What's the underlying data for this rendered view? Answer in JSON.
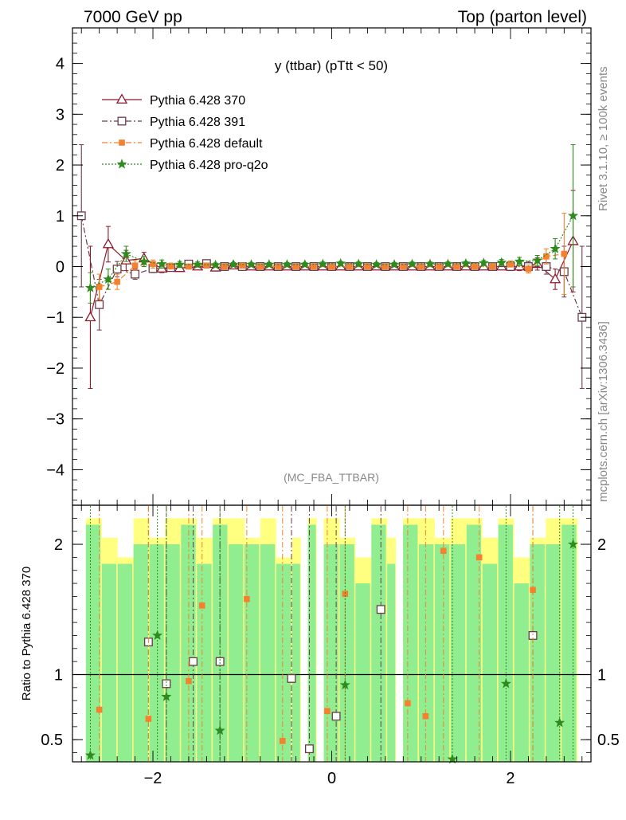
{
  "header": {
    "left": "7000 GeV pp",
    "right": "Top (parton level)"
  },
  "side": {
    "rivet": "Rivet 3.1.10, ≥ 100k events",
    "mcplots": "mcplots.cern.ch [arXiv:1306.3436]"
  },
  "chart_data": [
    {
      "type": "line",
      "title": "y (ttbar) (pTtt < 50)",
      "watermark": "(MC_FBA_TTBAR)",
      "xlim": [
        -2.9,
        2.9
      ],
      "ylim": [
        -4.7,
        4.7
      ],
      "yticks": [
        -4,
        -3,
        -2,
        -1,
        0,
        1,
        2,
        3,
        4
      ],
      "ytick_labels": [
        "−4",
        "−3",
        "−2",
        "−1",
        "0",
        "1",
        "2",
        "3",
        "4"
      ],
      "legend_position": "top-left",
      "series": [
        {
          "name": "Pythia 6.428 370",
          "color": "#8b1a2b",
          "marker": "triangle-open",
          "dash": "solid",
          "x": [
            -2.7,
            -2.5,
            -2.3,
            -2.1,
            -1.9,
            -1.7,
            -1.5,
            -1.3,
            -1.1,
            -0.9,
            -0.7,
            -0.5,
            -0.3,
            -0.1,
            0.1,
            0.3,
            0.5,
            0.7,
            0.9,
            1.1,
            1.3,
            1.5,
            1.7,
            1.9,
            2.1,
            2.3,
            2.5,
            2.7
          ],
          "y": [
            -1.0,
            0.44,
            0.12,
            0.16,
            -0.04,
            -0.03,
            0.0,
            -0.02,
            0.02,
            0.0,
            0.0,
            0.0,
            0.0,
            0.0,
            0.0,
            0.0,
            0.0,
            0.0,
            0.0,
            0.0,
            0.0,
            0.0,
            0.0,
            0.0,
            0.0,
            0.05,
            -0.25,
            0.5
          ],
          "err": [
            1.4,
            0.35,
            0.2,
            0.12,
            0.08,
            0.06,
            0.05,
            0.04,
            0.04,
            0.04,
            0.04,
            0.04,
            0.04,
            0.04,
            0.04,
            0.04,
            0.04,
            0.04,
            0.04,
            0.04,
            0.04,
            0.04,
            0.05,
            0.06,
            0.08,
            0.12,
            0.2,
            1.0
          ]
        },
        {
          "name": "Pythia 6.428 391",
          "color": "#6b3a4a",
          "marker": "square-open",
          "dash": "dashdot",
          "x": [
            -2.8,
            -2.6,
            -2.4,
            -2.2,
            -2.0,
            -1.8,
            -1.6,
            -1.4,
            -1.2,
            -1.0,
            -0.8,
            -0.6,
            -0.4,
            -0.2,
            0.0,
            0.2,
            0.4,
            0.6,
            0.8,
            1.0,
            1.2,
            1.4,
            1.6,
            1.8,
            2.0,
            2.2,
            2.4,
            2.6,
            2.8
          ],
          "y": [
            1.0,
            -0.75,
            -0.05,
            -0.15,
            -0.04,
            -0.02,
            0.05,
            0.06,
            0.0,
            0.0,
            0.0,
            0.0,
            0.0,
            0.0,
            0.0,
            0.0,
            0.0,
            0.0,
            0.0,
            0.0,
            0.0,
            0.0,
            0.0,
            0.0,
            0.0,
            0.0,
            0.0,
            -0.1,
            -1.0
          ],
          "err": [
            1.4,
            0.5,
            0.15,
            0.1,
            0.08,
            0.06,
            0.05,
            0.04,
            0.04,
            0.04,
            0.04,
            0.04,
            0.04,
            0.04,
            0.04,
            0.04,
            0.04,
            0.04,
            0.04,
            0.04,
            0.04,
            0.04,
            0.05,
            0.06,
            0.08,
            0.1,
            0.15,
            0.5,
            1.4
          ]
        },
        {
          "name": "Pythia 6.428 default",
          "color": "#f5812e",
          "marker": "square-filled",
          "dash": "dashdot",
          "x": [
            -2.6,
            -2.4,
            -2.2,
            -2.0,
            -1.8,
            -1.6,
            -1.4,
            -1.2,
            -1.0,
            -0.8,
            -0.6,
            -0.4,
            -0.2,
            0.0,
            0.2,
            0.4,
            0.6,
            0.8,
            1.0,
            1.2,
            1.4,
            1.6,
            1.8,
            2.0,
            2.2,
            2.4,
            2.6
          ],
          "y": [
            -0.4,
            -0.3,
            0.02,
            0.05,
            0.01,
            0.0,
            0.02,
            0.0,
            0.02,
            0.0,
            0.0,
            0.0,
            0.0,
            0.0,
            0.0,
            0.0,
            0.0,
            0.0,
            0.0,
            0.0,
            0.0,
            0.0,
            0.0,
            0.05,
            -0.05,
            0.2,
            0.25
          ],
          "err": [
            0.25,
            0.15,
            0.1,
            0.08,
            0.06,
            0.05,
            0.04,
            0.04,
            0.04,
            0.04,
            0.04,
            0.04,
            0.04,
            0.04,
            0.04,
            0.04,
            0.04,
            0.04,
            0.04,
            0.04,
            0.04,
            0.04,
            0.05,
            0.06,
            0.08,
            0.15,
            0.8
          ]
        },
        {
          "name": "Pythia 6.428 pro-q2o",
          "color": "#2e8b1e",
          "marker": "star",
          "dash": "dotted",
          "x": [
            -2.7,
            -2.5,
            -2.3,
            -2.1,
            -1.9,
            -1.7,
            -1.5,
            -1.3,
            -1.1,
            -0.9,
            -0.7,
            -0.5,
            -0.3,
            -0.1,
            0.1,
            0.3,
            0.5,
            0.7,
            0.9,
            1.1,
            1.3,
            1.5,
            1.7,
            1.9,
            2.1,
            2.3,
            2.5,
            2.7
          ],
          "y": [
            -0.42,
            -0.25,
            0.25,
            0.1,
            0.05,
            0.04,
            0.04,
            0.03,
            0.04,
            0.04,
            0.04,
            0.04,
            0.04,
            0.05,
            0.06,
            0.05,
            0.04,
            0.04,
            0.05,
            0.05,
            0.05,
            0.06,
            0.07,
            0.08,
            0.1,
            0.12,
            0.35,
            1.0
          ],
          "err": [
            0.3,
            0.2,
            0.15,
            0.1,
            0.08,
            0.06,
            0.05,
            0.04,
            0.04,
            0.04,
            0.04,
            0.04,
            0.04,
            0.04,
            0.04,
            0.04,
            0.04,
            0.04,
            0.04,
            0.04,
            0.04,
            0.04,
            0.05,
            0.06,
            0.08,
            0.1,
            0.2,
            1.4
          ]
        }
      ]
    },
    {
      "type": "line",
      "ylabel": "Ratio to Pythia 6.428 370",
      "xlim": [
        -2.9,
        2.9
      ],
      "ylim": [
        0.33,
        2.3
      ],
      "yticks": [
        0.5,
        1,
        2
      ],
      "ytick_labels": [
        "0.5",
        "1",
        "2"
      ],
      "xticks": [
        -2,
        0,
        2
      ],
      "xtick_labels": [
        "−2",
        "0",
        "2"
      ],
      "reference_line": 1,
      "band_colors": [
        "#ffff80",
        "#90ee90"
      ],
      "points": [
        {
          "series": "Pythia 6.428 391",
          "x": [
            -2.05,
            -1.85,
            -1.55,
            -1.25,
            -0.45,
            -0.25,
            0.05,
            0.55,
            2.25
          ],
          "y": [
            1.25,
            0.93,
            1.1,
            1.1,
            0.97,
            0.43,
            0.68,
            1.5,
            1.3
          ]
        },
        {
          "series": "Pythia 6.428 default",
          "x": [
            -2.6,
            -2.05,
            -1.6,
            -1.45,
            -0.95,
            -0.55,
            -0.05,
            0.15,
            0.85,
            1.05,
            1.25,
            1.65,
            2.25
          ],
          "y": [
            0.73,
            0.66,
            0.95,
            1.53,
            1.58,
            0.49,
            0.72,
            1.62,
            0.78,
            0.68,
            1.95,
            1.9,
            1.65
          ]
        },
        {
          "series": "Pythia 6.428 pro-q2o",
          "x": [
            -2.7,
            -1.95,
            -1.85,
            -1.25,
            0.15,
            1.35,
            1.95,
            2.55,
            2.7
          ],
          "y": [
            0.38,
            1.3,
            0.83,
            0.57,
            0.92,
            0.35,
            0.93,
            0.63,
            2.0
          ]
        }
      ]
    }
  ]
}
